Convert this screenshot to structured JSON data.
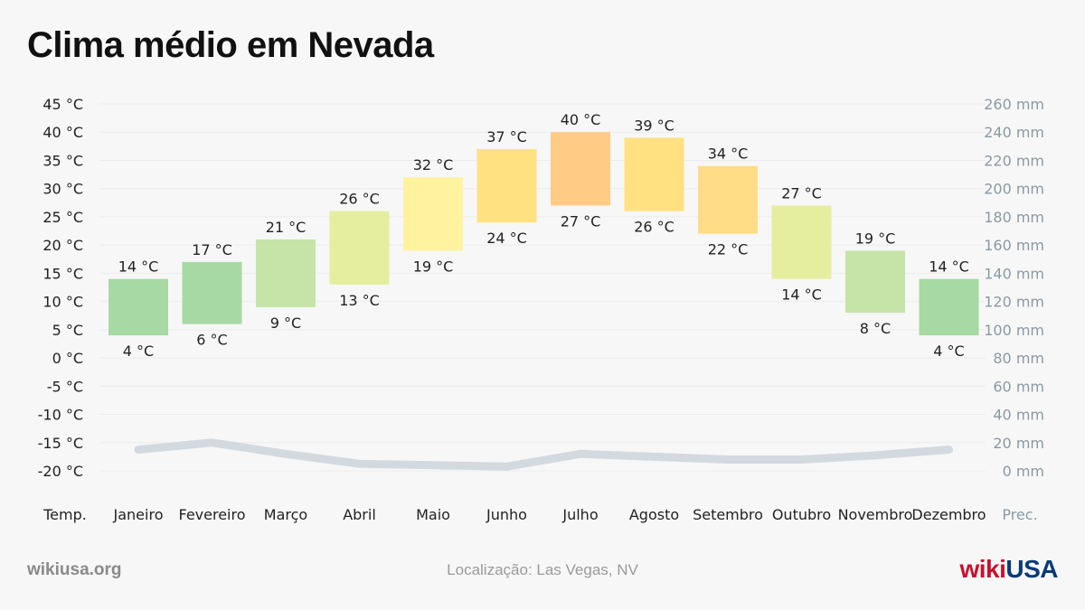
{
  "title": "Clima médio em Nevada",
  "footer": {
    "site": "wikiusa.org",
    "location": "Localização: Las Vegas, NV",
    "logo_wiki": "wiki",
    "logo_usa": "USA"
  },
  "colors": {
    "precip_line": "#d3dadf",
    "gridline": "#ececec",
    "left_axis_text": "#222222",
    "right_axis_text": "#8a9aa3"
  },
  "chart_data": {
    "type": "bar",
    "categories": [
      "Janeiro",
      "Fevereiro",
      "Março",
      "Abril",
      "Maio",
      "Junho",
      "Julho",
      "Agosto",
      "Setembro",
      "Outubro",
      "Novembro",
      "Dezembro"
    ],
    "series": [
      {
        "values_high": [
          14,
          17,
          21,
          26,
          32,
          37,
          40,
          39,
          34,
          27,
          19,
          14
        ]
      },
      {
        "values_low": [
          4,
          6,
          9,
          13,
          19,
          24,
          27,
          26,
          22,
          14,
          8,
          4
        ]
      }
    ],
    "bar_colors": [
      "#a7d9a4",
      "#a7d9a4",
      "#c6e4a7",
      "#e5ee9f",
      "#fff3a0",
      "#ffe182",
      "#ffcb85",
      "#ffe182",
      "#ffdd86",
      "#e5ee9f",
      "#c6e4a7",
      "#a7d9a4"
    ],
    "precipitation_mm": [
      15,
      20,
      12,
      5,
      4,
      3,
      12,
      10,
      8,
      8,
      11,
      15
    ],
    "left_axis": {
      "label": "Temp.",
      "ylim": [
        -20,
        45
      ],
      "ticks": [
        "45 °C",
        "40 °C",
        "35 °C",
        "30 °C",
        "25 °C",
        "20 °C",
        "15 °C",
        "10 °C",
        "5 °C",
        "0 °C",
        "-5 °C",
        "-10 °C",
        "-15 °C",
        "-20 °C"
      ]
    },
    "right_axis": {
      "label": "Prec.",
      "ylim": [
        0,
        260
      ],
      "ticks": [
        "260 mm",
        "240 mm",
        "220 mm",
        "200 mm",
        "180 mm",
        "160 mm",
        "140 mm",
        "120 mm",
        "100 mm",
        "80 mm",
        "60 mm",
        "40 mm",
        "20 mm",
        "0 mm"
      ]
    },
    "high_labels": [
      "14 °C",
      "17 °C",
      "21 °C",
      "26 °C",
      "32 °C",
      "37 °C",
      "40 °C",
      "39 °C",
      "34 °C",
      "27 °C",
      "19 °C",
      "14 °C"
    ],
    "low_labels": [
      "4 °C",
      "6 °C",
      "9 °C",
      "13 °C",
      "19 °C",
      "24 °C",
      "27 °C",
      "26 °C",
      "22 °C",
      "14 °C",
      "8 °C",
      "4 °C"
    ]
  }
}
